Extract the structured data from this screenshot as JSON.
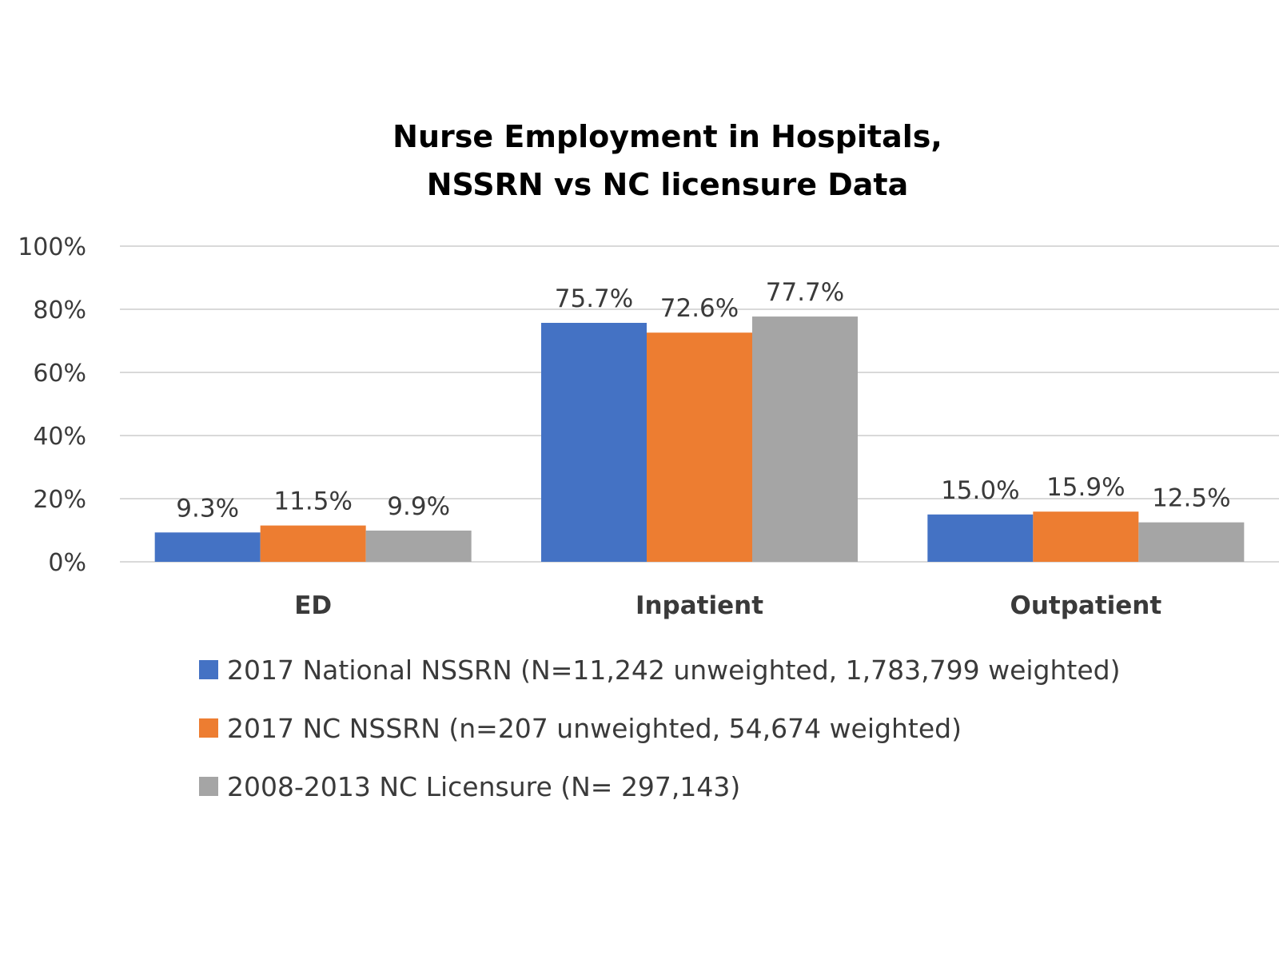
{
  "chart_data": {
    "type": "bar",
    "title": [
      "Nurse Employment in Hospitals,",
      "NSSRN vs NC licensure Data"
    ],
    "categories": [
      "ED",
      "Inpatient",
      "Outpatient"
    ],
    "series": [
      {
        "name": "2017 National NSSRN (N=11,242 unweighted, 1,783,799 weighted)",
        "values": [
          9.3,
          75.7,
          15.0
        ],
        "labels": [
          "9.3%",
          "75.7%",
          "15.0%"
        ],
        "color": "#4472C4"
      },
      {
        "name": "2017 NC NSSRN (n=207 unweighted, 54,674 weighted)",
        "values": [
          11.5,
          72.6,
          15.9
        ],
        "labels": [
          "11.5%",
          "72.6%",
          "15.9%"
        ],
        "color": "#ED7D31"
      },
      {
        "name": "2008-2013 NC Licensure (N= 297,143)",
        "values": [
          9.9,
          77.7,
          12.5
        ],
        "labels": [
          "9.9%",
          "77.7%",
          "12.5%"
        ],
        "color": "#A5A5A5"
      }
    ],
    "ylim": [
      0,
      100
    ],
    "yticks": [
      "0%",
      "20%",
      "40%",
      "60%",
      "80%",
      "100%"
    ],
    "xlabel": "",
    "ylabel": "",
    "grid": true,
    "legend": "bottom"
  }
}
